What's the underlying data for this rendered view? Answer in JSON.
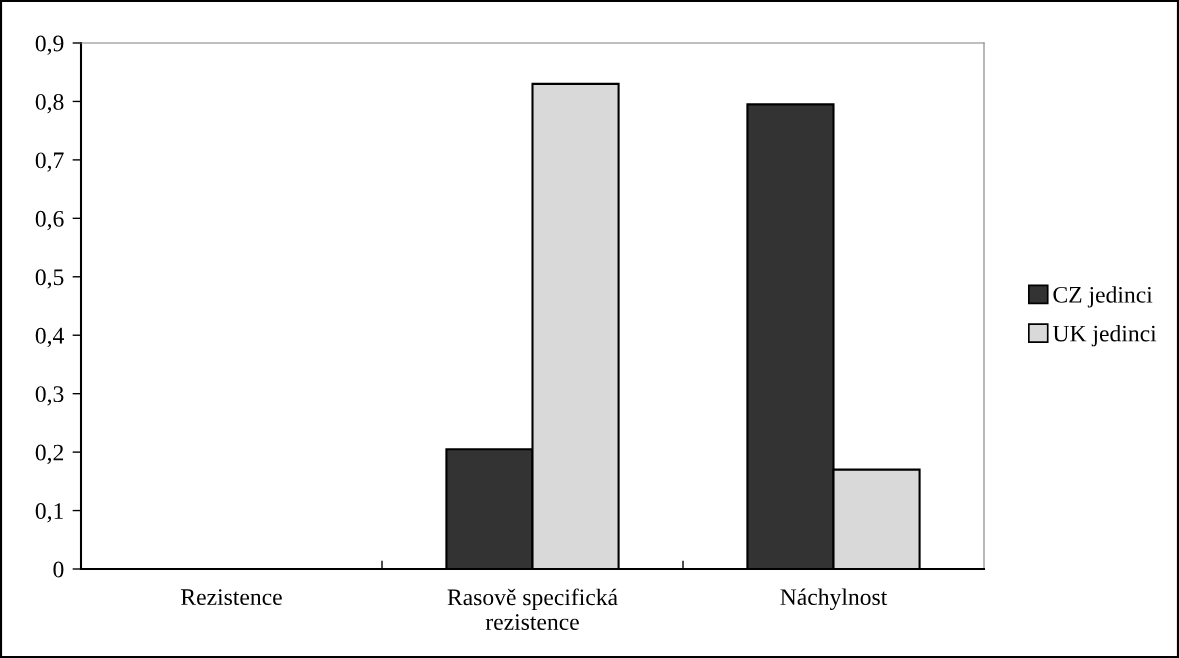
{
  "chart_data": {
    "type": "bar",
    "categories": [
      "Rezistence",
      "Rasově specifická\nrezistence",
      "Náchylnost"
    ],
    "series": [
      {
        "name": "CZ jedinci",
        "color": "#333333",
        "values": [
          0,
          0.205,
          0.795
        ]
      },
      {
        "name": "UK jedinci",
        "color": "#d9d9d9",
        "values": [
          0,
          0.83,
          0.17
        ]
      }
    ],
    "ylim": [
      0,
      0.9
    ],
    "yticks": [
      0,
      {
        "value": 0.1,
        "label": "0,1"
      },
      {
        "value": 0.2,
        "label": "0,2"
      },
      {
        "value": 0.3,
        "label": "0,3"
      },
      {
        "value": 0.4,
        "label": "0,4"
      },
      {
        "value": 0.5,
        "label": "0,5"
      },
      {
        "value": 0.6,
        "label": "0,6"
      },
      {
        "value": 0.7,
        "label": "0,7"
      },
      {
        "value": 0.8,
        "label": "0,8"
      },
      {
        "value": 0.9,
        "label": "0,9"
      }
    ],
    "grid": false,
    "legend": "right"
  }
}
